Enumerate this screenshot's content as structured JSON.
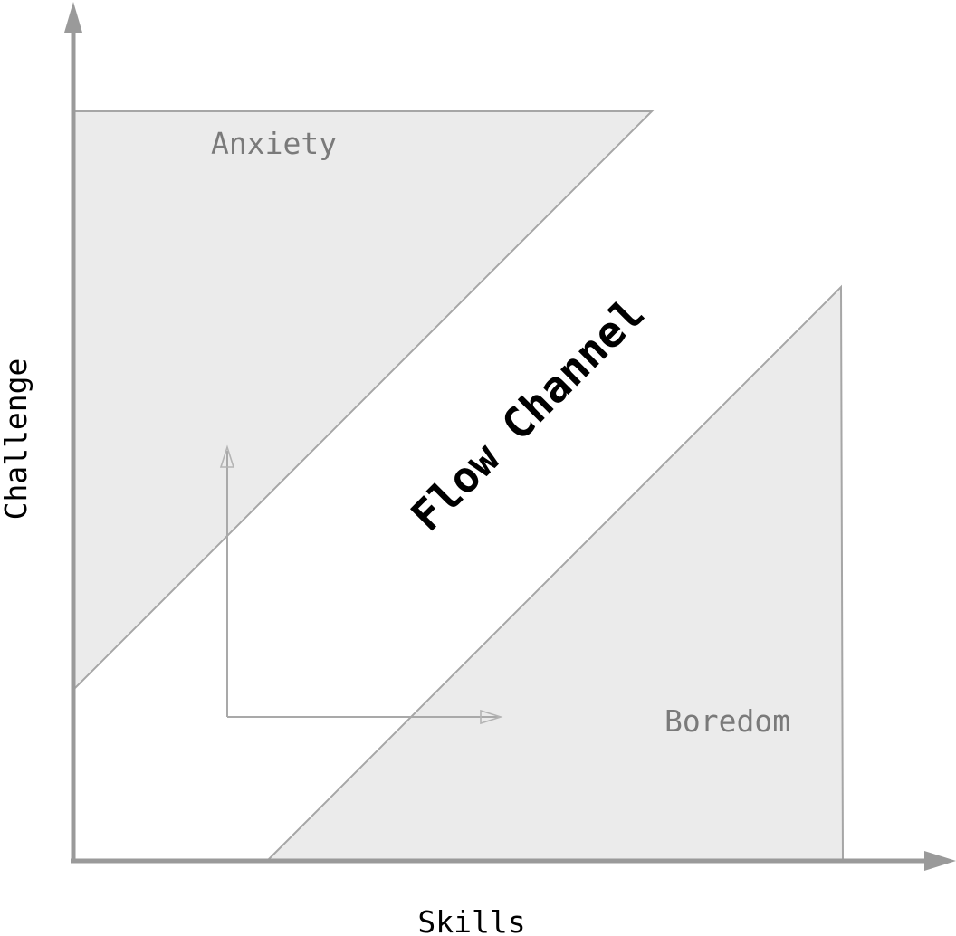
{
  "regions": {
    "anxiety": "Anxiety",
    "boredom": "Boredom",
    "flow_channel": "Flow Channel"
  },
  "axes": {
    "x_label": "Skills",
    "y_label": "Challenge"
  },
  "colors": {
    "region_fill": "#ebebeb",
    "region_stroke": "#a6a6a6",
    "axis": "#9a9a9a",
    "muted_text": "#7a7a7a",
    "strong_text": "#000000"
  }
}
